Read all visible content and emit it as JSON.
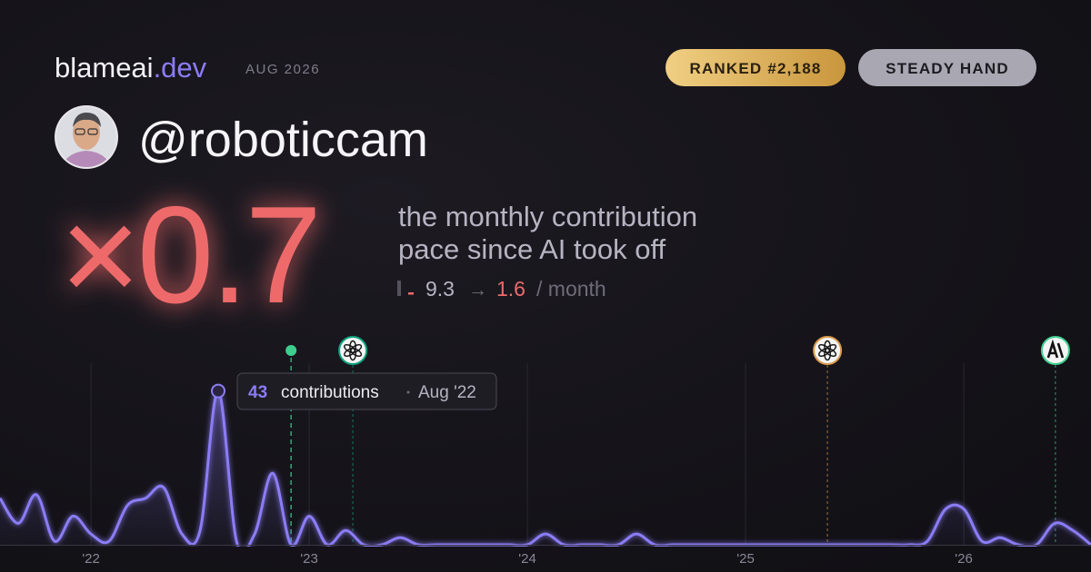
{
  "header": {
    "brand": "blameai",
    "brand_suffix": ".dev",
    "date": "AUG 2026",
    "badges": [
      "RANKED #2,188",
      "STEADY HAND"
    ],
    "username": "@roboticcam",
    "multiplier": "×0.7",
    "description": [
      "the monthly contribution",
      "pace since AI took off"
    ],
    "pace": {
      "before": "9.3",
      "arrow": "→",
      "after": "1.6",
      "unit": "/ month"
    }
  },
  "chart_data": {
    "type": "line",
    "x": [
      2021.583,
      2021.667,
      2021.75,
      2021.833,
      2021.917,
      2022,
      2022.083,
      2022.167,
      2022.25,
      2022.333,
      2022.417,
      2022.5,
      2022.583,
      2022.667,
      2022.75,
      2022.833,
      2022.917,
      2023,
      2023.083,
      2023.167,
      2023.25,
      2023.333,
      2023.417,
      2023.5,
      2023.583,
      2023.667,
      2023.75,
      2023.833,
      2023.917,
      2024,
      2024.083,
      2024.167,
      2024.25,
      2024.333,
      2024.417,
      2024.5,
      2024.583,
      2024.667,
      2024.75,
      2024.833,
      2024.917,
      2025,
      2025.083,
      2025.167,
      2025.25,
      2025.333,
      2025.417,
      2025.5,
      2025.583,
      2025.667,
      2025.75,
      2025.833,
      2025.917,
      2026,
      2026.083,
      2026.167,
      2026.25,
      2026.333,
      2026.417,
      2026.5,
      2026.583
    ],
    "series": [
      {
        "name": "contributions",
        "color": "#8b7cf6",
        "values": [
          13,
          6,
          14,
          1,
          8,
          3,
          1,
          11,
          13,
          16,
          3,
          4,
          43,
          1,
          3,
          20,
          0,
          8,
          0,
          4,
          0,
          0,
          2,
          0,
          0,
          0,
          0,
          0,
          0,
          0,
          3,
          0,
          0,
          0,
          0,
          3,
          0,
          0,
          0,
          0,
          0,
          0,
          0,
          0,
          0,
          0,
          0,
          0,
          0,
          0,
          0,
          1,
          10,
          10,
          1,
          2,
          0,
          0,
          6,
          4,
          0
        ]
      }
    ],
    "xlim": [
      2021.583,
      2026.583
    ],
    "ylim": [
      0,
      50
    ],
    "xticks": [
      {
        "value": 2022,
        "label": "'22"
      },
      {
        "value": 2023,
        "label": "'23"
      },
      {
        "value": 2024,
        "label": "'24"
      },
      {
        "value": 2025,
        "label": "'25"
      },
      {
        "value": 2026,
        "label": "'26"
      }
    ],
    "tooltip": {
      "index": 12,
      "label": "contributions",
      "date": "Aug '22"
    },
    "events": [
      {
        "x": 2022.917,
        "color": "#3ecf8e",
        "style": "dot"
      },
      {
        "x": 2023.2,
        "color": "#10a37f",
        "style": "openai"
      },
      {
        "x": 2025.375,
        "color": "#d99a4e",
        "style": "openai"
      },
      {
        "x": 2026.42,
        "color": "#3ecf8e",
        "style": "anthropic"
      }
    ]
  }
}
